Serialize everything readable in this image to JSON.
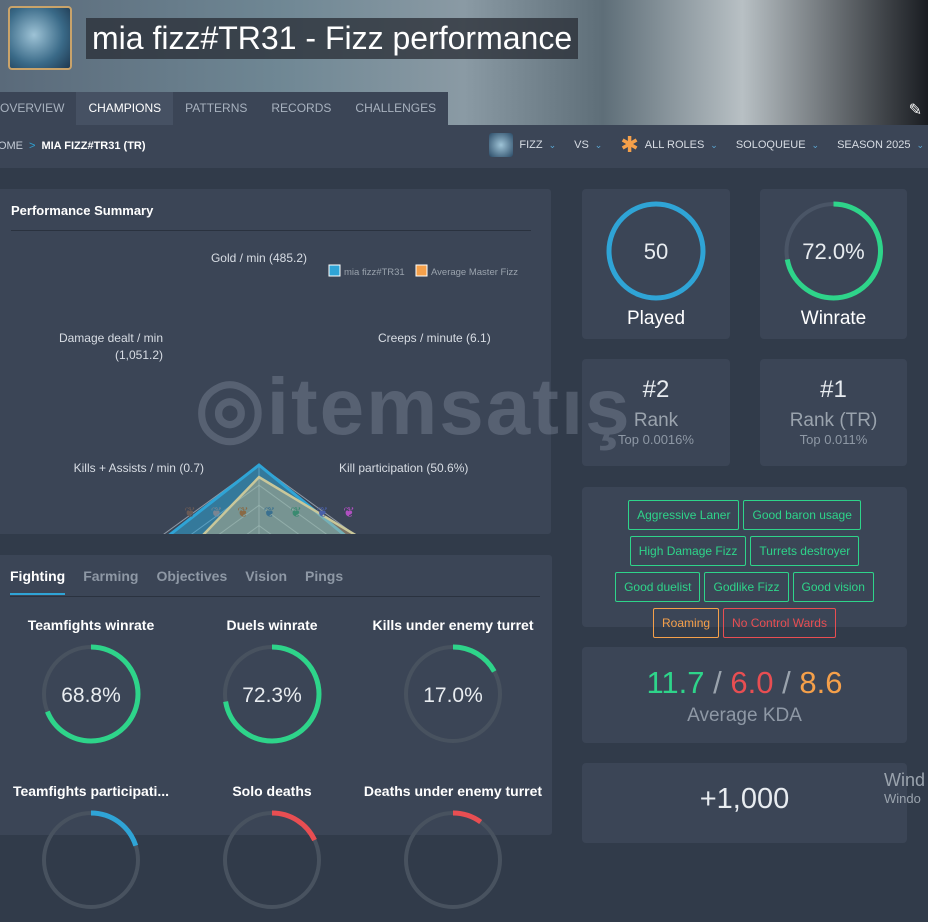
{
  "header": {
    "title": "mia fizz#TR31 - Fizz performance"
  },
  "nav": {
    "tabs": [
      "OVERVIEW",
      "CHAMPIONS",
      "PATTERNS",
      "RECORDS",
      "CHALLENGES"
    ],
    "active": "CHAMPIONS"
  },
  "breadcrumb": {
    "home": "HOME",
    "sep": ">",
    "current": "MIA FIZZ#TR31 (TR)"
  },
  "filters": {
    "champion": "FIZZ",
    "vs": "VS",
    "role": "ALL ROLES",
    "queue": "SOLOQUEUE",
    "season": "SEASON 2025"
  },
  "summary": {
    "title": "Performance Summary"
  },
  "chart_data": {
    "type": "radar",
    "axes": [
      "Gold / min (485.2)",
      "Creeps / minute (6.1)",
      "Kill participation (50.6%)",
      "Kills + Assists / min (0.7)",
      "Damage dealt / min (1,051.2)"
    ],
    "series": [
      {
        "name": "mia fizz#TR31",
        "color": "#2fa4d6",
        "values": [
          1.0,
          0.92,
          0.97,
          0.97,
          0.95
        ]
      },
      {
        "name": "Average Master Fizz",
        "color": "#f5a04a",
        "values": [
          0.88,
          1.0,
          0.89,
          0.69,
          0.68
        ]
      }
    ],
    "range": [
      0,
      1
    ],
    "grid_levels": 5,
    "legend": "top-right"
  },
  "stats": {
    "played": {
      "value": "50",
      "label": "Played",
      "fraction": 1.0
    },
    "winrate": {
      "value": "72.0%",
      "label": "Winrate",
      "fraction": 0.72
    },
    "rank": {
      "value": "#2",
      "label": "Rank",
      "sub": "Top 0.0016%"
    },
    "rank_tr": {
      "value": "#1",
      "label": "Rank (TR)",
      "sub": "Top 0.011%"
    }
  },
  "tags": [
    {
      "text": "Aggressive Laner",
      "tone": "good"
    },
    {
      "text": "Good baron usage",
      "tone": "good"
    },
    {
      "text": "High Damage Fizz",
      "tone": "good"
    },
    {
      "text": "Turrets destroyer",
      "tone": "good"
    },
    {
      "text": "Good duelist",
      "tone": "good"
    },
    {
      "text": "Godlike Fizz",
      "tone": "good"
    },
    {
      "text": "Good vision",
      "tone": "good"
    },
    {
      "text": "Roaming",
      "tone": "neutral"
    },
    {
      "text": "No Control Wards",
      "tone": "bad"
    }
  ],
  "kda": {
    "kills": "11.7",
    "deaths": "6.0",
    "assists": "8.6",
    "sep": "/",
    "label": "Average KDA"
  },
  "extra": {
    "value": "+1,000"
  },
  "fighting": {
    "tabs": [
      "Fighting",
      "Farming",
      "Objectives",
      "Vision",
      "Pings"
    ],
    "metrics": [
      {
        "title": "Teamfights winrate",
        "value": "68.8%",
        "fraction": 0.688,
        "color": "#2ed48a"
      },
      {
        "title": "Duels winrate",
        "value": "72.3%",
        "fraction": 0.723,
        "color": "#2ed48a"
      },
      {
        "title": "Kills under enemy turret",
        "value": "17.0%",
        "fraction": 0.17,
        "color": "#2ed48a"
      },
      {
        "title": "Teamfights participati...",
        "fraction": 0.2,
        "color": "#2fa4d6"
      },
      {
        "title": "Solo deaths",
        "fraction": 0.18,
        "color": "#e84e52"
      },
      {
        "title": "Deaths under enemy turret",
        "fraction": 0.1,
        "color": "#e84e52"
      }
    ]
  },
  "watermark": "itemsatış",
  "os_overlay": {
    "line1": "Wind",
    "line2": "Windo"
  }
}
